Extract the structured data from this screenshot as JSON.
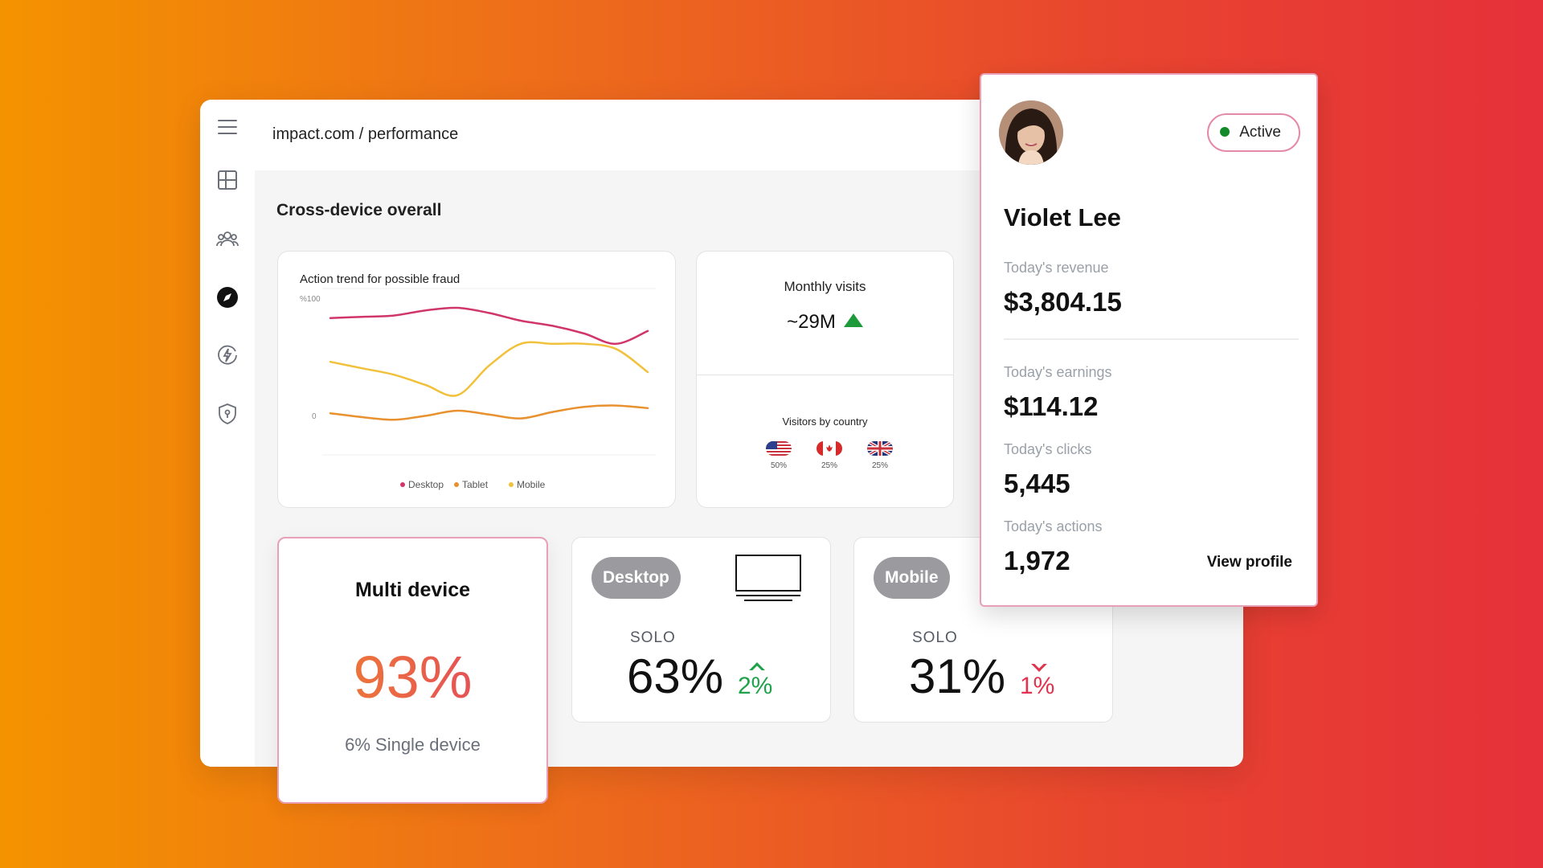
{
  "sidebar": {
    "items": [
      {
        "icon": "menu-icon"
      },
      {
        "icon": "dashboard-icon"
      },
      {
        "icon": "users-icon"
      },
      {
        "icon": "compass-icon"
      },
      {
        "icon": "lightning-icon"
      },
      {
        "icon": "shield-icon"
      }
    ],
    "active_index": 3
  },
  "header": {
    "breadcrumb": "impact.com / performance"
  },
  "main": {
    "section_title": "Cross-device overall",
    "fraud_chart": {
      "title": "Action trend for possible fraud"
    },
    "monthly_visits": {
      "label": "Monthly visits",
      "value": "~29M",
      "trend": "up",
      "country_label": "Visitors by country",
      "countries": [
        {
          "flag": "us-flag-icon",
          "pct": "50%"
        },
        {
          "flag": "ca-flag-icon",
          "pct": "25%"
        },
        {
          "flag": "uk-flag-icon",
          "pct": "25%"
        }
      ]
    },
    "multi_device": {
      "title": "Multi device",
      "value": "93%",
      "subtitle": "6% Single device"
    },
    "desktop": {
      "pill": "Desktop",
      "icon": "monitor-icon",
      "label": "SOLO",
      "value": "63%",
      "delta": "2%",
      "delta_direction": "up"
    },
    "mobile": {
      "pill": "Mobile",
      "label": "SOLO",
      "value": "31%",
      "delta": "1%",
      "delta_direction": "down"
    }
  },
  "profile": {
    "name": "Violet Lee",
    "status": "Active",
    "status_color": "#138a2a",
    "revenue_label": "Today's revenue",
    "revenue": "$3,804.15",
    "earnings_label": "Today's earnings",
    "earnings": "$114.12",
    "clicks_label": "Today's clicks",
    "clicks": "5,445",
    "actions_label": "Today's actions",
    "actions": "1,972",
    "view_profile": "View profile"
  },
  "chart_data": {
    "type": "line",
    "title": "Action trend for possible fraud",
    "y_tick_labels": [
      "%100",
      "0"
    ],
    "grid": true,
    "legend_position": "bottom",
    "x": [
      0,
      1,
      2,
      3,
      4,
      5,
      6,
      7,
      8,
      9,
      10
    ],
    "series": [
      {
        "name": "Desktop",
        "color": "#d0356b",
        "values": [
          82,
          83,
          84,
          88,
          90,
          86,
          80,
          76,
          70,
          62,
          72
        ]
      },
      {
        "name": "Tablet",
        "color": "#e8912e",
        "values": [
          8,
          5,
          3,
          6,
          10,
          7,
          4,
          9,
          13,
          14,
          12
        ]
      },
      {
        "name": "Mobile",
        "color": "#f2c13c",
        "values": [
          48,
          43,
          38,
          30,
          22,
          45,
          62,
          62,
          62,
          58,
          40
        ]
      }
    ]
  }
}
